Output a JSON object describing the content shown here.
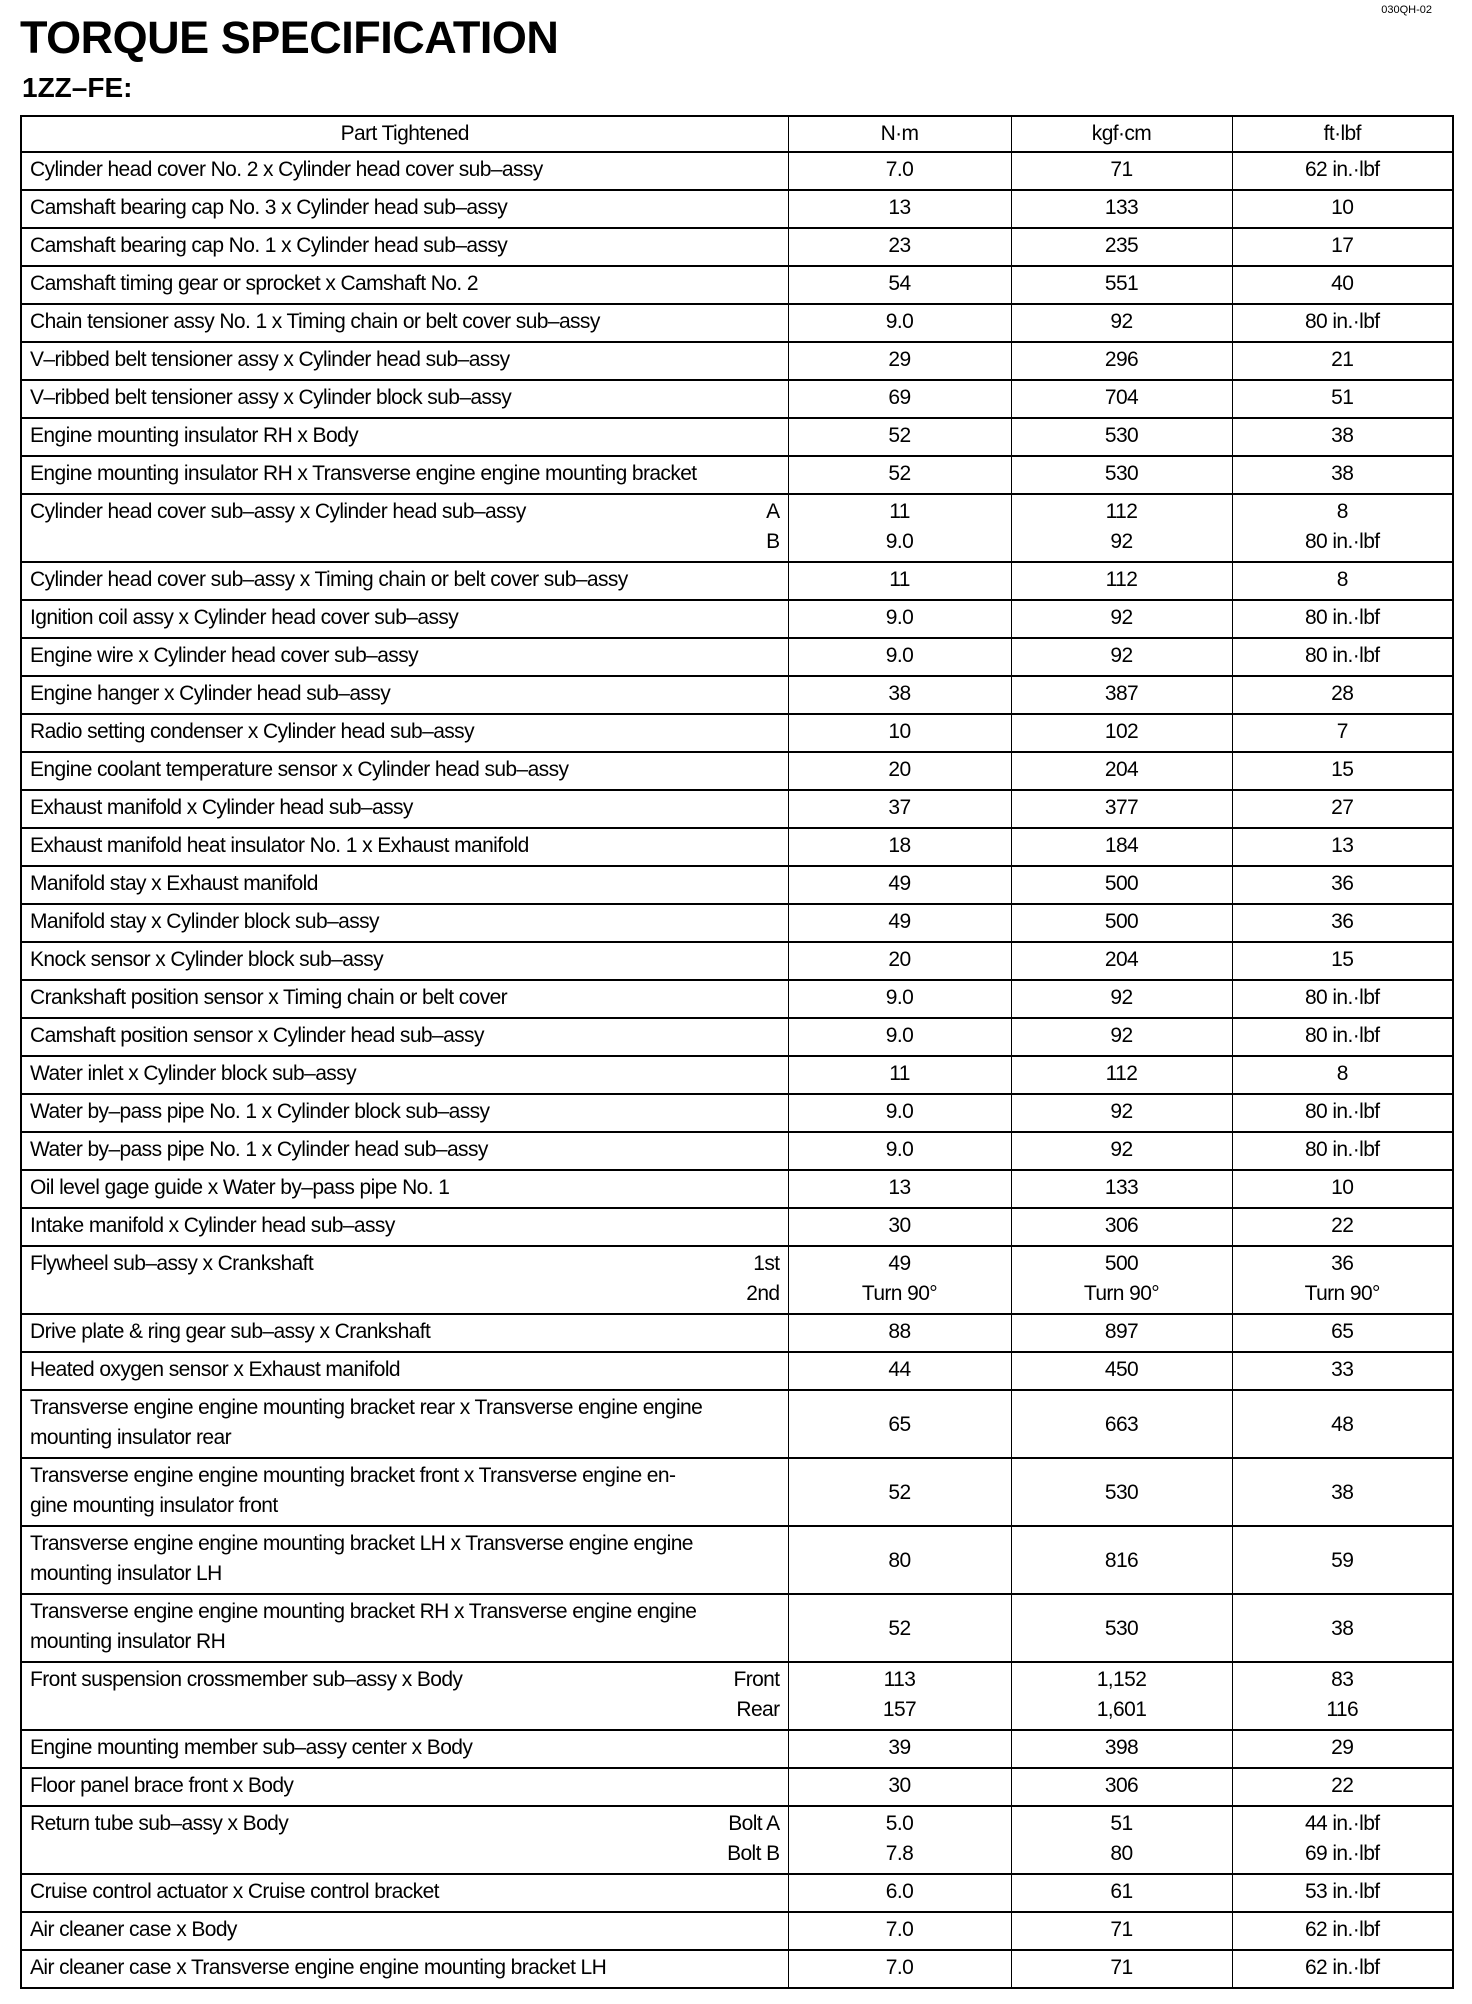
{
  "doc_code": "030QH-02",
  "title": "TORQUE SPECIFICATION",
  "subtitle": "1ZZ–FE:",
  "headers": [
    "Part Tightened",
    "N·m",
    "kgf·cm",
    "ft·lbf"
  ],
  "rows": [
    {
      "part": [
        "Cylinder head cover No. 2 x Cylinder head cover sub–assy"
      ],
      "sub": [],
      "nm": [
        "7.0"
      ],
      "kgf": [
        "71"
      ],
      "ft": [
        "62 in.·lbf"
      ]
    },
    {
      "part": [
        "Camshaft bearing cap No. 3 x Cylinder head sub–assy"
      ],
      "sub": [],
      "nm": [
        "13"
      ],
      "kgf": [
        "133"
      ],
      "ft": [
        "10"
      ]
    },
    {
      "part": [
        "Camshaft bearing cap No. 1 x Cylinder head sub–assy"
      ],
      "sub": [],
      "nm": [
        "23"
      ],
      "kgf": [
        "235"
      ],
      "ft": [
        "17"
      ]
    },
    {
      "part": [
        "Camshaft timing gear or sprocket x Camshaft No. 2"
      ],
      "sub": [],
      "nm": [
        "54"
      ],
      "kgf": [
        "551"
      ],
      "ft": [
        "40"
      ]
    },
    {
      "part": [
        "Chain tensioner assy No. 1 x Timing chain or belt cover sub–assy"
      ],
      "sub": [],
      "nm": [
        "9.0"
      ],
      "kgf": [
        "92"
      ],
      "ft": [
        "80 in.·lbf"
      ]
    },
    {
      "part": [
        "V–ribbed belt tensioner assy x Cylinder head sub–assy"
      ],
      "sub": [],
      "nm": [
        "29"
      ],
      "kgf": [
        "296"
      ],
      "ft": [
        "21"
      ]
    },
    {
      "part": [
        "V–ribbed belt tensioner assy x Cylinder block sub–assy"
      ],
      "sub": [],
      "nm": [
        "69"
      ],
      "kgf": [
        "704"
      ],
      "ft": [
        "51"
      ]
    },
    {
      "part": [
        "Engine mounting insulator RH x Body"
      ],
      "sub": [],
      "nm": [
        "52"
      ],
      "kgf": [
        "530"
      ],
      "ft": [
        "38"
      ]
    },
    {
      "part": [
        "Engine mounting insulator RH x Transverse engine engine mounting bracket"
      ],
      "sub": [],
      "nm": [
        "52"
      ],
      "kgf": [
        "530"
      ],
      "ft": [
        "38"
      ]
    },
    {
      "part": [
        "Cylinder head cover sub–assy x Cylinder head sub–assy"
      ],
      "sub": [
        "A",
        "B"
      ],
      "nm": [
        "11",
        "9.0"
      ],
      "kgf": [
        "112",
        "92"
      ],
      "ft": [
        "8",
        "80 in.·lbf"
      ]
    },
    {
      "part": [
        "Cylinder head cover sub–assy x Timing chain or belt cover sub–assy"
      ],
      "sub": [],
      "nm": [
        "11"
      ],
      "kgf": [
        "112"
      ],
      "ft": [
        "8"
      ]
    },
    {
      "part": [
        "Ignition coil assy x Cylinder head cover sub–assy"
      ],
      "sub": [],
      "nm": [
        "9.0"
      ],
      "kgf": [
        "92"
      ],
      "ft": [
        "80 in.·lbf"
      ]
    },
    {
      "part": [
        "Engine wire x Cylinder head cover sub–assy"
      ],
      "sub": [],
      "nm": [
        "9.0"
      ],
      "kgf": [
        "92"
      ],
      "ft": [
        "80 in.·lbf"
      ]
    },
    {
      "part": [
        "Engine hanger x Cylinder head sub–assy"
      ],
      "sub": [],
      "nm": [
        "38"
      ],
      "kgf": [
        "387"
      ],
      "ft": [
        "28"
      ]
    },
    {
      "part": [
        "Radio setting condenser x Cylinder head sub–assy"
      ],
      "sub": [],
      "nm": [
        "10"
      ],
      "kgf": [
        "102"
      ],
      "ft": [
        "7"
      ]
    },
    {
      "part": [
        "Engine coolant temperature sensor x Cylinder head sub–assy"
      ],
      "sub": [],
      "nm": [
        "20"
      ],
      "kgf": [
        "204"
      ],
      "ft": [
        "15"
      ]
    },
    {
      "part": [
        "Exhaust manifold x Cylinder head sub–assy"
      ],
      "sub": [],
      "nm": [
        "37"
      ],
      "kgf": [
        "377"
      ],
      "ft": [
        "27"
      ]
    },
    {
      "part": [
        "Exhaust manifold heat insulator No. 1 x Exhaust manifold"
      ],
      "sub": [],
      "nm": [
        "18"
      ],
      "kgf": [
        "184"
      ],
      "ft": [
        "13"
      ]
    },
    {
      "part": [
        "Manifold stay x Exhaust manifold"
      ],
      "sub": [],
      "nm": [
        "49"
      ],
      "kgf": [
        "500"
      ],
      "ft": [
        "36"
      ]
    },
    {
      "part": [
        "Manifold stay x Cylinder block sub–assy"
      ],
      "sub": [],
      "nm": [
        "49"
      ],
      "kgf": [
        "500"
      ],
      "ft": [
        "36"
      ]
    },
    {
      "part": [
        "Knock sensor x Cylinder block sub–assy"
      ],
      "sub": [],
      "nm": [
        "20"
      ],
      "kgf": [
        "204"
      ],
      "ft": [
        "15"
      ]
    },
    {
      "part": [
        "Crankshaft position sensor x Timing chain or belt cover"
      ],
      "sub": [],
      "nm": [
        "9.0"
      ],
      "kgf": [
        "92"
      ],
      "ft": [
        "80 in.·lbf"
      ]
    },
    {
      "part": [
        "Camshaft position sensor x Cylinder head sub–assy"
      ],
      "sub": [],
      "nm": [
        "9.0"
      ],
      "kgf": [
        "92"
      ],
      "ft": [
        "80 in.·lbf"
      ]
    },
    {
      "part": [
        "Water inlet x Cylinder block sub–assy"
      ],
      "sub": [],
      "nm": [
        "11"
      ],
      "kgf": [
        "112"
      ],
      "ft": [
        "8"
      ]
    },
    {
      "part": [
        "Water by–pass pipe No. 1 x Cylinder block sub–assy"
      ],
      "sub": [],
      "nm": [
        "9.0"
      ],
      "kgf": [
        "92"
      ],
      "ft": [
        "80 in.·lbf"
      ]
    },
    {
      "part": [
        "Water by–pass pipe No. 1 x Cylinder head sub–assy"
      ],
      "sub": [],
      "nm": [
        "9.0"
      ],
      "kgf": [
        "92"
      ],
      "ft": [
        "80 in.·lbf"
      ]
    },
    {
      "part": [
        "Oil level gage guide x Water by–pass pipe No. 1"
      ],
      "sub": [],
      "nm": [
        "13"
      ],
      "kgf": [
        "133"
      ],
      "ft": [
        "10"
      ]
    },
    {
      "part": [
        "Intake manifold x Cylinder head sub–assy"
      ],
      "sub": [],
      "nm": [
        "30"
      ],
      "kgf": [
        "306"
      ],
      "ft": [
        "22"
      ]
    },
    {
      "part": [
        "Flywheel sub–assy x Crankshaft"
      ],
      "sub": [
        "1st",
        "2nd"
      ],
      "nm": [
        "49",
        "Turn 90°"
      ],
      "kgf": [
        "500",
        "Turn 90°"
      ],
      "ft": [
        "36",
        "Turn 90°"
      ]
    },
    {
      "part": [
        "Drive plate & ring gear sub–assy x Crankshaft"
      ],
      "sub": [],
      "nm": [
        "88"
      ],
      "kgf": [
        "897"
      ],
      "ft": [
        "65"
      ]
    },
    {
      "part": [
        "Heated oxygen sensor x Exhaust manifold"
      ],
      "sub": [],
      "nm": [
        "44"
      ],
      "kgf": [
        "450"
      ],
      "ft": [
        "33"
      ]
    },
    {
      "part": [
        "Transverse engine engine mounting bracket rear x Transverse engine engine",
        "mounting insulator rear"
      ],
      "sub": [],
      "nm": [
        "65"
      ],
      "kgf": [
        "663"
      ],
      "ft": [
        "48"
      ]
    },
    {
      "part": [
        "Transverse engine engine mounting bracket front x Transverse engine en-",
        "gine mounting insulator front"
      ],
      "sub": [],
      "nm": [
        "52"
      ],
      "kgf": [
        "530"
      ],
      "ft": [
        "38"
      ]
    },
    {
      "part": [
        "Transverse engine engine mounting bracket LH x Transverse engine engine",
        "mounting insulator LH"
      ],
      "sub": [],
      "nm": [
        "80"
      ],
      "kgf": [
        "816"
      ],
      "ft": [
        "59"
      ]
    },
    {
      "part": [
        "Transverse engine engine mounting bracket RH x Transverse engine engine",
        "mounting insulator RH"
      ],
      "sub": [],
      "nm": [
        "52"
      ],
      "kgf": [
        "530"
      ],
      "ft": [
        "38"
      ]
    },
    {
      "part": [
        "Front suspension crossmember sub–assy x Body"
      ],
      "sub": [
        "Front",
        "Rear"
      ],
      "nm": [
        "113",
        "157"
      ],
      "kgf": [
        "1,152",
        "1,601"
      ],
      "ft": [
        "83",
        "116"
      ]
    },
    {
      "part": [
        "Engine mounting member sub–assy center x Body"
      ],
      "sub": [],
      "nm": [
        "39"
      ],
      "kgf": [
        "398"
      ],
      "ft": [
        "29"
      ]
    },
    {
      "part": [
        "Floor panel brace front x Body"
      ],
      "sub": [],
      "nm": [
        "30"
      ],
      "kgf": [
        "306"
      ],
      "ft": [
        "22"
      ]
    },
    {
      "part": [
        "Return tube sub–assy x Body"
      ],
      "sub": [
        "Bolt A",
        "Bolt B"
      ],
      "nm": [
        "5.0",
        "7.8"
      ],
      "kgf": [
        "51",
        "80"
      ],
      "ft": [
        "44 in.·lbf",
        "69 in.·lbf"
      ]
    },
    {
      "part": [
        "Cruise control actuator x Cruise control bracket"
      ],
      "sub": [],
      "nm": [
        "6.0"
      ],
      "kgf": [
        "61"
      ],
      "ft": [
        "53 in.·lbf"
      ]
    },
    {
      "part": [
        "Air cleaner case x Body"
      ],
      "sub": [],
      "nm": [
        "7.0"
      ],
      "kgf": [
        "71"
      ],
      "ft": [
        "62 in.·lbf"
      ]
    },
    {
      "part": [
        "Air cleaner case x Transverse engine engine mounting bracket LH"
      ],
      "sub": [],
      "nm": [
        "7.0"
      ],
      "kgf": [
        "71"
      ],
      "ft": [
        "62 in.·lbf"
      ]
    }
  ]
}
